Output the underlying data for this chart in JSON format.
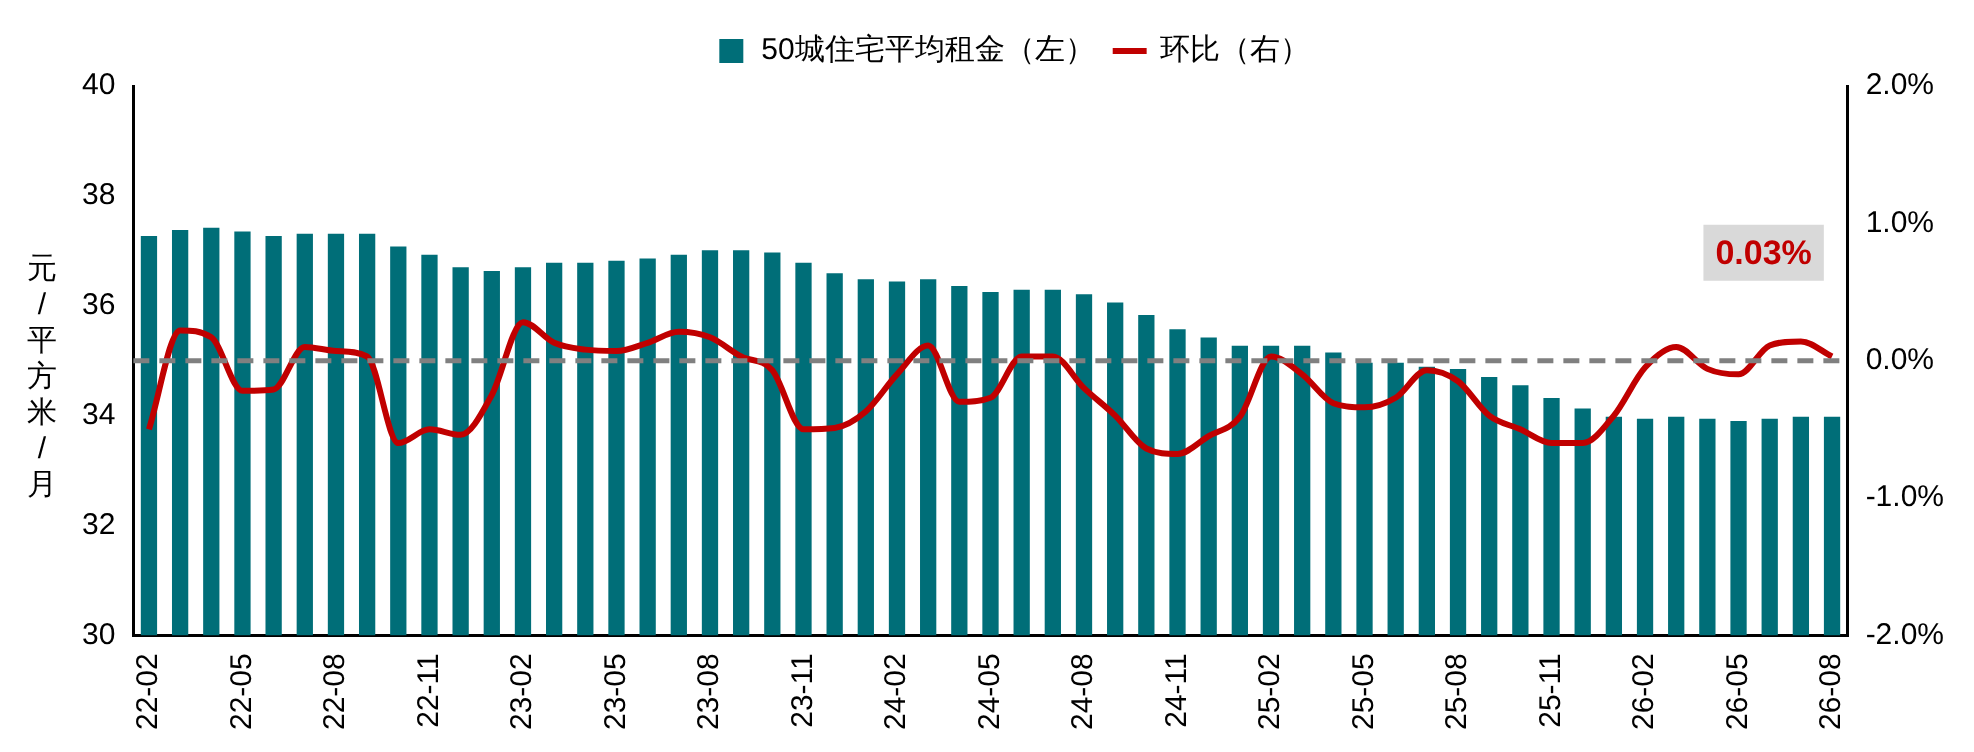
{
  "chart_data": {
    "type": "bar",
    "legend": "top",
    "ylabel": "元/平方米/月",
    "categories": [
      "22-02",
      null,
      null,
      "22-05",
      null,
      null,
      "22-08",
      null,
      null,
      "22-11",
      null,
      null,
      "23-02",
      null,
      null,
      "23-05",
      null,
      null,
      "23-08",
      null,
      null,
      "23-11",
      null,
      null,
      "24-02",
      null,
      null,
      "24-05",
      null,
      null,
      "24-08",
      null,
      null,
      "24-11",
      null,
      null,
      "25-02",
      null,
      null,
      "25-05",
      null,
      null,
      "25-08",
      null,
      null,
      "25-11",
      null,
      null,
      "26-02",
      null,
      null,
      "26-05",
      null,
      null,
      "26-08"
    ],
    "series": [
      {
        "name": "50城住宅平均租金（左）",
        "color": "#006e78",
        "values": [
          37.27,
          37.38,
          37.42,
          37.35,
          37.27,
          37.31,
          37.31,
          37.31,
          37.08,
          36.93,
          36.7,
          36.63,
          36.7,
          36.78,
          36.78,
          36.82,
          36.86,
          36.93,
          37.01,
          37.01,
          36.97,
          36.78,
          36.59,
          36.48,
          36.44,
          36.48,
          36.36,
          36.25,
          36.29,
          36.29,
          36.21,
          36.06,
          35.83,
          35.57,
          35.42,
          35.27,
          35.27,
          35.27,
          35.15,
          34.96,
          34.96,
          34.89,
          34.85,
          34.7,
          34.55,
          34.32,
          34.13,
          33.98,
          33.94,
          33.98,
          33.94,
          33.9,
          33.94,
          33.98,
          33.98
        ]
      },
      {
        "name": "环比（右）",
        "type": "line",
        "axis": "y2",
        "color": "#c00000",
        "values": [
          -0.5,
          0.22,
          0.17,
          -0.22,
          -0.21,
          0.1,
          0.07,
          0.03,
          -0.6,
          -0.5,
          -0.54,
          -0.25,
          0.28,
          0.13,
          0.08,
          0.07,
          0.13,
          0.21,
          0.17,
          0.03,
          -0.07,
          -0.5,
          -0.49,
          -0.37,
          -0.1,
          0.11,
          -0.3,
          -0.27,
          0.03,
          0.03,
          -0.2,
          -0.4,
          -0.64,
          -0.68,
          -0.55,
          -0.41,
          0.03,
          -0.1,
          -0.31,
          -0.34,
          -0.27,
          -0.07,
          -0.15,
          -0.4,
          -0.5,
          -0.6,
          -0.6,
          -0.4,
          -0.05,
          0.1,
          -0.06,
          -0.1,
          0.11,
          0.14,
          0.03
        ]
      }
    ],
    "ylim": [
      30,
      40
    ],
    "yticks": [
      30,
      32,
      34,
      36,
      38,
      40
    ],
    "y2lim": [
      -2,
      2
    ],
    "y2ticks": [
      {
        "value": -2,
        "label": "-2.0%"
      },
      {
        "value": -1,
        "label": "-1.0%"
      },
      {
        "value": 0,
        "label": "0.0%"
      },
      {
        "value": 1,
        "label": "1.0%"
      },
      {
        "value": 2,
        "label": "2.0%"
      }
    ],
    "ref_lines": [
      {
        "axis": "y2",
        "value": 0,
        "color": "#808080",
        "line_style": "dashed"
      }
    ],
    "annotations": [
      "0.03%"
    ]
  }
}
